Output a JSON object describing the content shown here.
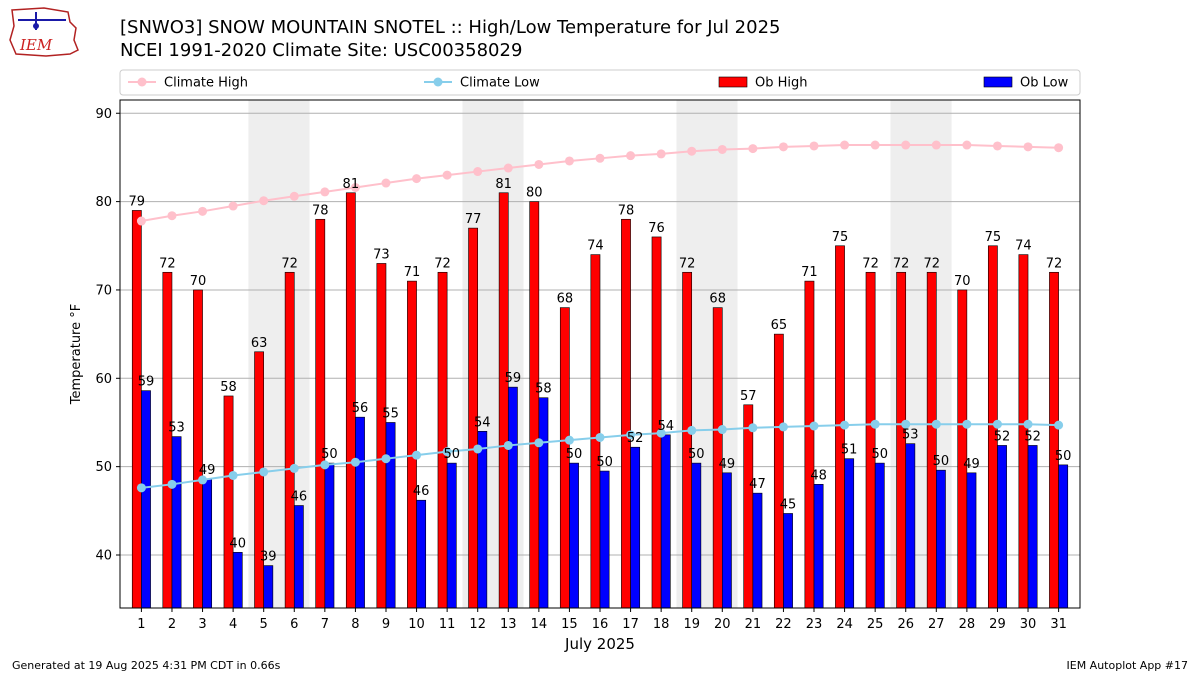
{
  "logo": {
    "text": "IEM"
  },
  "header": {
    "title": "[SNWO3] SNOW MOUNTAIN SNOTEL :: High/Low Temperature for Jul 2025",
    "subtitle": "NCEI 1991-2020 Climate Site: USC00358029"
  },
  "footer": {
    "left": "Generated at 19 Aug 2025 4:31 PM CDT in 0.66s",
    "right": "IEM Autoplot App #17"
  },
  "colors": {
    "ob_high": "#ff0000",
    "ob_low": "#0000ff",
    "climate_high": "#ffc0cb",
    "climate_low": "#87ceeb",
    "weekend_shade": "#eeeeee",
    "grid": "#b0b0b0"
  },
  "chart_data": {
    "type": "bar",
    "title": "[SNWO3] SNOW MOUNTAIN SNOTEL :: High/Low Temperature for Jul 2025",
    "subtitle": "NCEI 1991-2020 Climate Site: USC00358029",
    "xlabel": "July 2025",
    "ylabel": "Temperature °F",
    "ylim": [
      34,
      91.5
    ],
    "yticks": [
      40,
      50,
      60,
      70,
      80,
      90
    ],
    "grid": true,
    "legend_position": "top",
    "categories": [
      "1",
      "2",
      "3",
      "4",
      "5",
      "6",
      "7",
      "8",
      "9",
      "10",
      "11",
      "12",
      "13",
      "14",
      "15",
      "16",
      "17",
      "18",
      "19",
      "20",
      "21",
      "22",
      "23",
      "24",
      "25",
      "26",
      "27",
      "28",
      "29",
      "30",
      "31"
    ],
    "shaded_days": [
      5,
      6,
      12,
      13,
      19,
      20,
      26,
      27
    ],
    "series": [
      {
        "name": "Climate High",
        "kind": "line",
        "values": [
          77.8,
          78.4,
          78.9,
          79.5,
          80.1,
          80.6,
          81.1,
          81.6,
          82.1,
          82.6,
          83.0,
          83.4,
          83.8,
          84.2,
          84.6,
          84.9,
          85.2,
          85.4,
          85.7,
          85.9,
          86.0,
          86.2,
          86.3,
          86.4,
          86.4,
          86.4,
          86.4,
          86.4,
          86.3,
          86.2,
          86.1
        ]
      },
      {
        "name": "Climate Low",
        "kind": "line",
        "values": [
          47.6,
          48.0,
          48.5,
          49.0,
          49.4,
          49.8,
          50.2,
          50.5,
          50.9,
          51.3,
          51.7,
          52.0,
          52.4,
          52.7,
          53.0,
          53.3,
          53.6,
          53.8,
          54.1,
          54.2,
          54.4,
          54.5,
          54.6,
          54.7,
          54.8,
          54.8,
          54.8,
          54.8,
          54.8,
          54.8,
          54.7
        ]
      },
      {
        "name": "Ob High",
        "kind": "bar",
        "values": [
          79,
          72,
          70,
          58,
          63,
          72,
          78,
          81,
          73,
          71,
          72,
          77,
          81,
          80,
          68,
          74,
          78,
          76,
          72,
          68,
          57,
          65,
          71,
          75,
          72,
          72,
          72,
          70,
          75,
          74,
          72
        ],
        "labels": [
          "79",
          "72",
          "70",
          "58",
          "63",
          "72",
          "78",
          "81",
          "73",
          "71",
          "72",
          "77",
          "81",
          "80",
          "68",
          "74",
          "78",
          "76",
          "72",
          "68",
          "57",
          "65",
          "71",
          "75",
          "72",
          "72",
          "72",
          "70",
          "75",
          "74",
          "72"
        ]
      },
      {
        "name": "Ob Low",
        "kind": "bar",
        "values": [
          58.6,
          53.4,
          48.6,
          40.3,
          38.8,
          45.6,
          50.4,
          55.6,
          55.0,
          46.2,
          50.4,
          54.0,
          59.0,
          57.8,
          50.4,
          49.5,
          52.2,
          53.6,
          50.4,
          49.3,
          47.0,
          44.7,
          48.0,
          50.9,
          50.4,
          52.6,
          49.6,
          49.3,
          52.4,
          52.4,
          50.2
        ],
        "labels": [
          "59",
          "53",
          "49",
          "40",
          "39",
          "46",
          "50",
          "56",
          "55",
          "46",
          "50",
          "54",
          "59",
          "58",
          "50",
          "50",
          "52",
          "54",
          "50",
          "49",
          "47",
          "45",
          "48",
          "51",
          "50",
          "53",
          "50",
          "49",
          "52",
          "52",
          "50"
        ]
      }
    ]
  }
}
